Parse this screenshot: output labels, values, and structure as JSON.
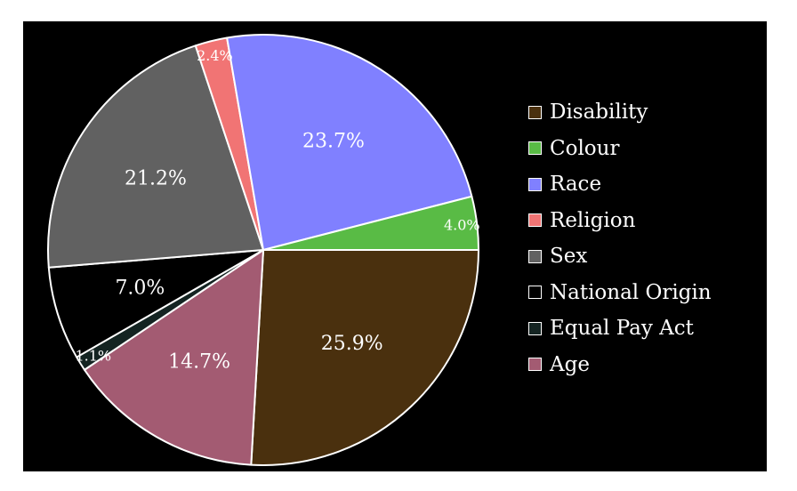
{
  "chart_data": {
    "type": "pie",
    "start_angle_deg": 0,
    "direction": "clockwise",
    "legend_position": "right",
    "slices": [
      {
        "name": "Disability",
        "value": 25.9,
        "label": "25.9%",
        "color": "#4a300e"
      },
      {
        "name": "Age",
        "value": 14.7,
        "label": "14.7%",
        "color": "#a35b72"
      },
      {
        "name": "Equal Pay Act",
        "value": 1.1,
        "label": "1.1%",
        "color": "#142422"
      },
      {
        "name": "National Origin",
        "value": 7.0,
        "label": "7.0%",
        "color": "#000000"
      },
      {
        "name": "Sex",
        "value": 21.2,
        "label": "21.2%",
        "color": "#616161"
      },
      {
        "name": "Religion",
        "value": 2.4,
        "label": "2.4%",
        "color": "#f17474"
      },
      {
        "name": "Race",
        "value": 23.7,
        "label": "23.7%",
        "color": "#8080ff"
      },
      {
        "name": "Colour",
        "value": 4.0,
        "label": "4.0%",
        "color": "#59bb45"
      }
    ],
    "legend": [
      {
        "label": "Disability",
        "color": "#4a300e"
      },
      {
        "label": "Colour",
        "color": "#59bb45"
      },
      {
        "label": "Race",
        "color": "#8080ff"
      },
      {
        "label": "Religion",
        "color": "#f17474"
      },
      {
        "label": "Sex",
        "color": "#616161"
      },
      {
        "label": "National Origin",
        "color": "#000000"
      },
      {
        "label": "Equal Pay Act",
        "color": "#142422"
      },
      {
        "label": "Age",
        "color": "#a35b72"
      }
    ]
  }
}
